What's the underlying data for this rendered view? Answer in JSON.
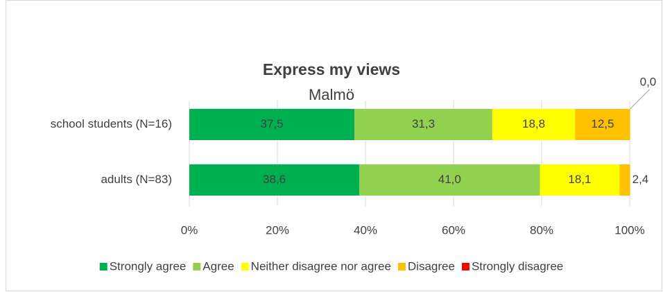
{
  "chart_data": {
    "type": "stacked-barh",
    "title": "Express my views",
    "subtitle": "Malmö",
    "categories": [
      "school students (N=16)",
      "adults (N=83)"
    ],
    "series": [
      {
        "name": "Strongly agree",
        "color": "#00b050",
        "values": [
          37.5,
          38.6
        ],
        "value_labels": [
          "37,5",
          "38,6"
        ]
      },
      {
        "name": "Agree",
        "color": "#92d050",
        "values": [
          31.3,
          41.0
        ],
        "value_labels": [
          "31,3",
          "41,0"
        ]
      },
      {
        "name": "Neither disagree nor agree",
        "color": "#ffff00",
        "values": [
          18.8,
          18.1
        ],
        "value_labels": [
          "18,8",
          "18,1"
        ]
      },
      {
        "name": "Disagree",
        "color": "#ffc000",
        "values": [
          12.5,
          2.4
        ],
        "value_labels": [
          "12,5",
          "2,4"
        ]
      },
      {
        "name": "Strongly disagree",
        "color": "#ff0000",
        "values": [
          0.0,
          0
        ],
        "value_labels": [
          "0,0",
          null
        ]
      }
    ],
    "xlim": [
      0,
      100
    ],
    "xticks": [
      {
        "value": 0,
        "label": "0%"
      },
      {
        "value": 20,
        "label": "20%"
      },
      {
        "value": 40,
        "label": "40%"
      },
      {
        "value": 60,
        "label": "60%"
      },
      {
        "value": 80,
        "label": "80%"
      },
      {
        "value": 100,
        "label": "100%"
      }
    ],
    "grid": true,
    "legend": "bottom"
  }
}
